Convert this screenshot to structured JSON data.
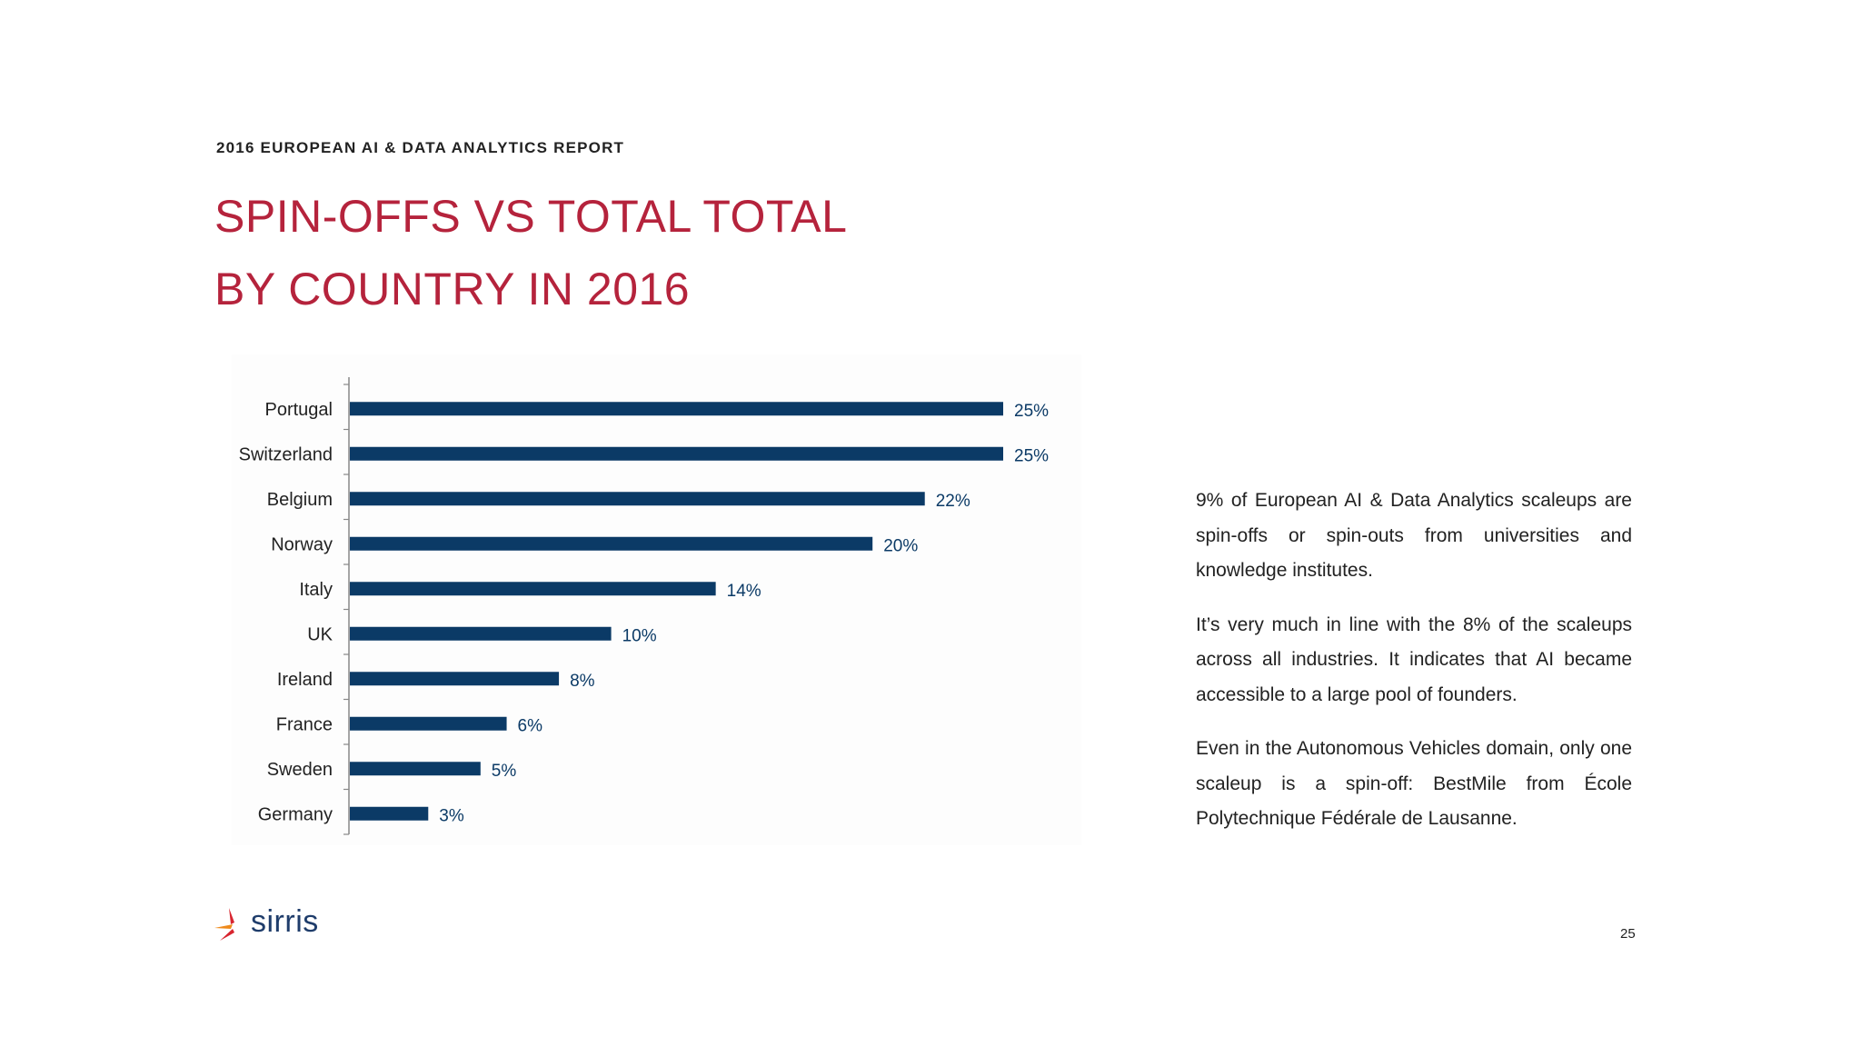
{
  "header": {
    "report_label": "2016 EUROPEAN AI & DATA ANALYTICS REPORT"
  },
  "title": {
    "line1": "SPIN-OFFS VS TOTAL TOTAL",
    "line2": "BY COUNTRY IN 2016"
  },
  "chart_data": {
    "type": "bar",
    "orientation": "horizontal",
    "categories": [
      "Portugal",
      "Switzerland",
      "Belgium",
      "Norway",
      "Italy",
      "UK",
      "Ireland",
      "France",
      "Sweden",
      "Germany"
    ],
    "values": [
      25,
      25,
      22,
      20,
      14,
      10,
      8,
      6,
      5,
      3
    ],
    "value_labels": [
      "25%",
      "25%",
      "22%",
      "20%",
      "14%",
      "10%",
      "8%",
      "6%",
      "5%",
      "3%"
    ],
    "xlim": [
      0,
      25
    ],
    "grid": false,
    "bar_color": "#0b3a66",
    "label_color": "#0b3a66"
  },
  "body": {
    "paragraphs": [
      "9% of European AI & Data Analytics scaleups are spin-offs or spin-outs from universities and knowledge institutes.",
      "It’s very much in line with the 8% of the scaleups across all industries. It indicates that AI became accessible to a large pool of founders.",
      "Even in the Autonomous Vehicles domain, only one scaleup is a spin-off: BestMile from École Polytechnique Fédérale de Lausanne."
    ]
  },
  "footer": {
    "logo_text": "sirris",
    "page_number": "25"
  },
  "colors": {
    "title": "#b5233c",
    "bars": "#0b3a66",
    "logo_red": "#d8252f",
    "logo_orange": "#ef8a1b",
    "logo_text": "#1f3d6b"
  }
}
